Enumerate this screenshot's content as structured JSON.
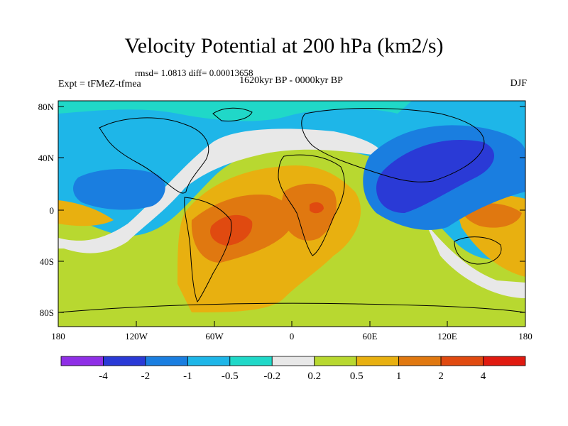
{
  "title": "Velocity Potential at 200 hPa (km2/s)",
  "stats": "rmsd= 1.0813 diff= 0.00013658",
  "period": "1620kyr BP - 0000kyr BP",
  "experiment": "Expt = tFMeZ-tfmea",
  "season": "DJF",
  "map": {
    "lat_labels": [
      "80N",
      "40N",
      "0",
      "40S",
      "80S"
    ],
    "lon_labels": [
      "180",
      "120W",
      "60W",
      "0",
      "60E",
      "120E",
      "180"
    ],
    "ocean_color": "#7ad0f0",
    "field_regions": [
      {
        "name": "north-pacific-atlantic-negative",
        "level": "-1"
      },
      {
        "name": "central-pacific-negative",
        "level": "-2"
      },
      {
        "name": "indian-ocean-west-pacific-negative",
        "level": "-2"
      },
      {
        "name": "south-america-positive",
        "level": "2"
      },
      {
        "name": "africa-positive",
        "level": "1"
      },
      {
        "name": "west-pacific-positive",
        "level": "2"
      }
    ]
  },
  "colorbar": {
    "colors": [
      "#8f2fe6",
      "#2a3ad6",
      "#1a7ee0",
      "#1eb6e8",
      "#20d8c8",
      "#e8e8e8",
      "#b8d830",
      "#e8b010",
      "#e07810",
      "#e04a10",
      "#e01a10"
    ],
    "labels": [
      "-4",
      "-2",
      "-1",
      "-0.5",
      "-0.2",
      "0.2",
      "0.5",
      "1",
      "2",
      "4"
    ]
  }
}
